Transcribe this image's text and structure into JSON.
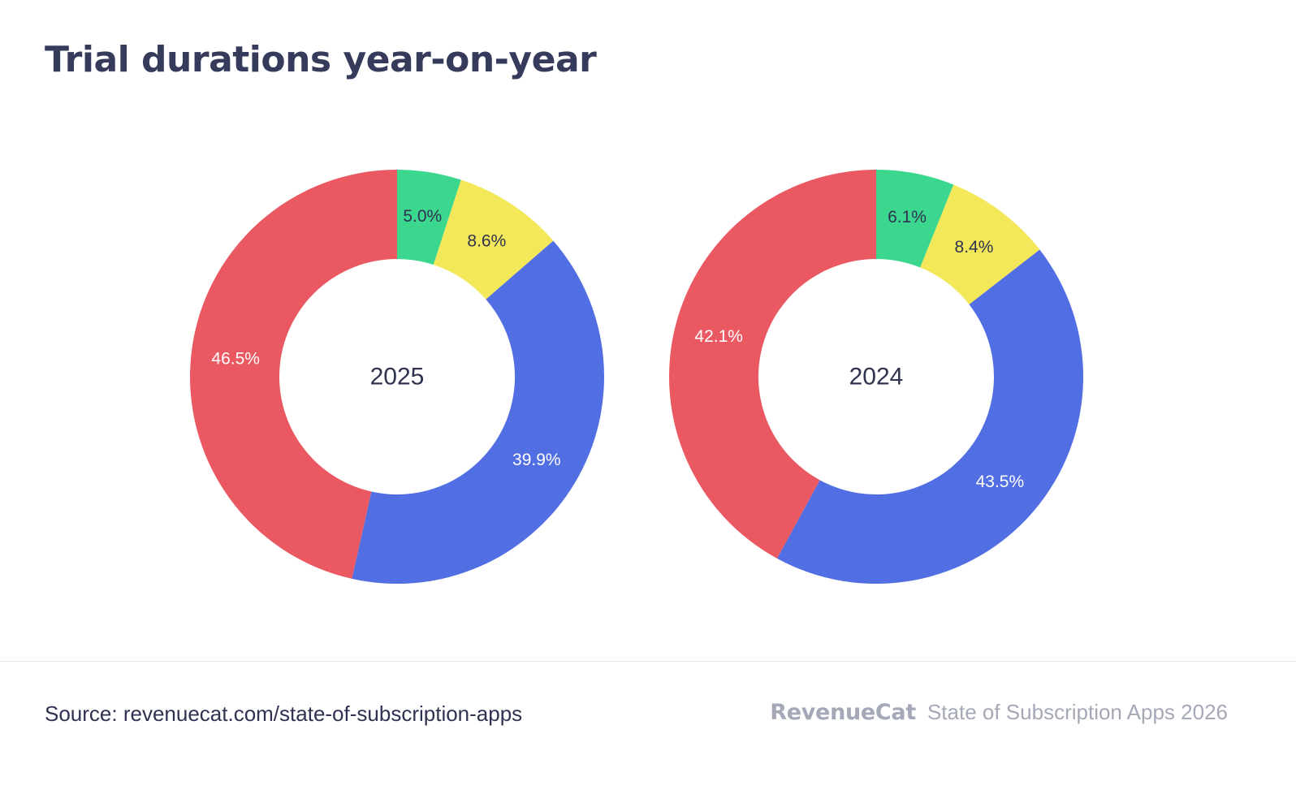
{
  "title": "Trial durations year-on-year",
  "chart_data": [
    {
      "type": "pie",
      "subtype": "donut",
      "center_label": "2025",
      "start": "top, clockwise",
      "slices": [
        {
          "value": 5.0,
          "label": "5.0%",
          "color": "#3bd78f",
          "label_color": "#2f3350"
        },
        {
          "value": 8.6,
          "label": "8.6%",
          "color": "#f3e75a",
          "label_color": "#2f3350"
        },
        {
          "value": 39.9,
          "label": "39.9%",
          "color": "#516ee2",
          "label_color": "#ffffff"
        },
        {
          "value": 46.5,
          "label": "46.5%",
          "color": "#ea5861",
          "label_color": "#ffffff"
        }
      ]
    },
    {
      "type": "pie",
      "subtype": "donut",
      "center_label": "2024",
      "start": "top, clockwise",
      "slices": [
        {
          "value": 6.1,
          "label": "6.1%",
          "color": "#3bd78f",
          "label_color": "#2f3350"
        },
        {
          "value": 8.4,
          "label": "8.4%",
          "color": "#f3e75a",
          "label_color": "#2f3350"
        },
        {
          "value": 43.5,
          "label": "43.5%",
          "color": "#516ee2",
          "label_color": "#ffffff"
        },
        {
          "value": 42.1,
          "label": "42.1%",
          "color": "#ea5861",
          "label_color": "#ffffff"
        }
      ]
    }
  ],
  "footer": {
    "source": "Source: revenuecat.com/state-of-subscription-apps",
    "brand_logo": "RevenueCat",
    "report_name": "State of Subscription Apps 2026"
  }
}
